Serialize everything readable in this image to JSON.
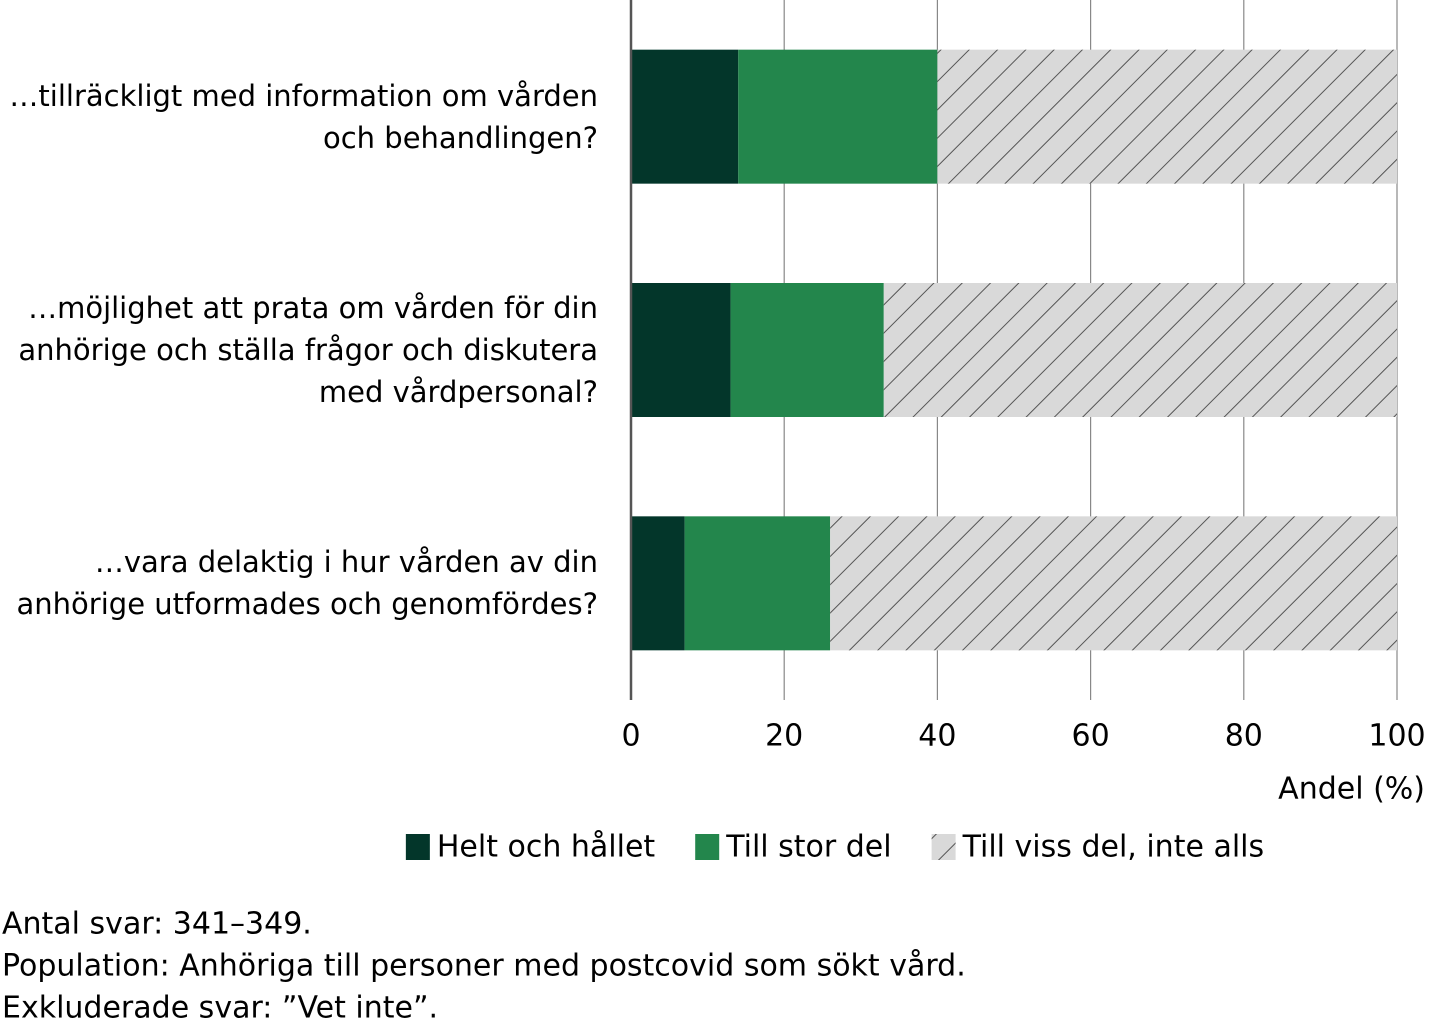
{
  "chart_data": {
    "type": "stacked-bar-horizontal",
    "categories": [
      "…tillräckligt med information om vården och behandlingen?",
      "…möjlighet att prata om vården för din anhörige och ställa frågor och diskutera med vårdpersonal?",
      "…vara delaktig i hur vården av din anhörige utformades och genomfördes?"
    ],
    "series": [
      {
        "name": "Helt och hållet",
        "color": "#03362a",
        "values": [
          14,
          13,
          7
        ]
      },
      {
        "name": "Till stor del",
        "color": "#23864c",
        "values": [
          26,
          20,
          19
        ]
      },
      {
        "name": "Till viss del, inte alls",
        "color": "#d9d9d9",
        "hatch": true,
        "values": [
          60,
          67,
          74
        ]
      }
    ],
    "xlim": [
      0,
      100
    ],
    "xticks": [
      0,
      20,
      40,
      60,
      80,
      100
    ],
    "grid": true,
    "x_label": "Andel (%)",
    "legend": "bottom",
    "notes": [
      "Antal svar: 341–349.",
      "Population: Anhöriga till personer med postcovid som sökt vård.",
      "Exkluderade svar: ”Vet inte”."
    ]
  }
}
